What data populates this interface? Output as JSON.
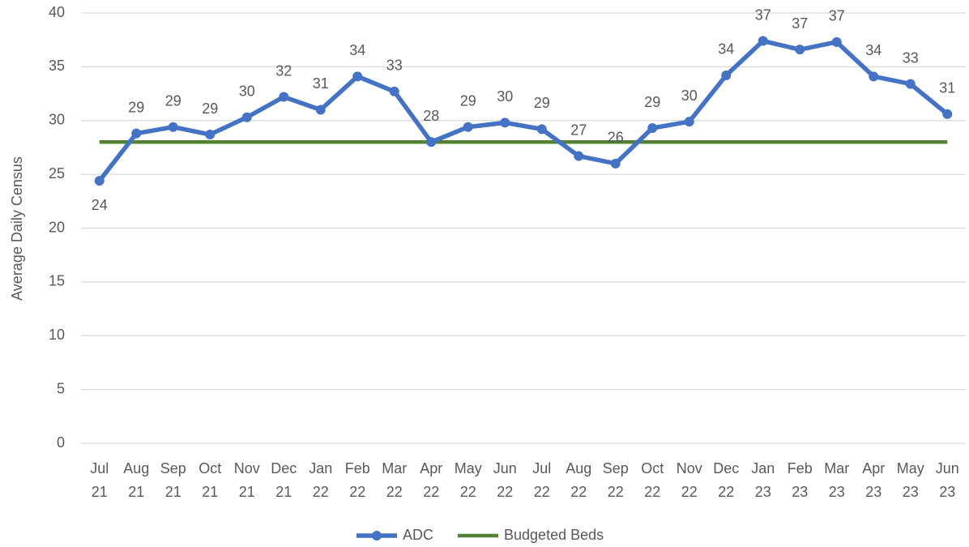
{
  "chart_data": {
    "type": "line",
    "y_label": "Average Daily Census",
    "categories": [
      "Jul 21",
      "Aug 21",
      "Sep 21",
      "Oct 21",
      "Nov 21",
      "Dec 21",
      "Jan 22",
      "Feb 22",
      "Mar 22",
      "Apr 22",
      "May 22",
      "Jun 22",
      "Jul 22",
      "Aug 22",
      "Sep 22",
      "Oct 22",
      "Nov 22",
      "Dec 22",
      "Jan 23",
      "Feb 23",
      "Mar 23",
      "Apr 23",
      "May 23",
      "Jun 23"
    ],
    "series": [
      {
        "name": "ADC",
        "color": "#4472c4",
        "markers": true,
        "values": [
          24.4,
          28.8,
          29.4,
          28.7,
          30.3,
          32.2,
          31.0,
          34.1,
          32.7,
          28.0,
          29.4,
          29.8,
          29.2,
          26.7,
          26.0,
          29.3,
          29.9,
          34.2,
          37.4,
          36.6,
          37.3,
          34.1,
          33.4,
          30.6
        ],
        "value_labels": [
          "24",
          "29",
          "29",
          "29",
          "30",
          "32",
          "31",
          "34",
          "33",
          "28",
          "29",
          "30",
          "29",
          "27",
          "26",
          "29",
          "30",
          "34",
          "37",
          "37",
          "37",
          "34",
          "33",
          "31"
        ]
      },
      {
        "name": "Budgeted Beds",
        "color": "#548235",
        "markers": false,
        "values": [
          28,
          28,
          28,
          28,
          28,
          28,
          28,
          28,
          28,
          28,
          28,
          28,
          28,
          28,
          28,
          28,
          28,
          28,
          28,
          28,
          28,
          28,
          28,
          28
        ]
      }
    ],
    "ylim": [
      0,
      40
    ],
    "yticks": [
      0,
      5,
      10,
      15,
      20,
      25,
      30,
      35,
      40
    ],
    "grid": true,
    "legend": "bottom"
  }
}
